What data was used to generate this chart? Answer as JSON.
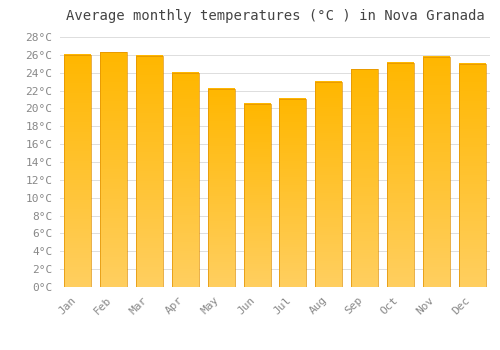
{
  "title": "Average monthly temperatures (°C ) in Nova Granada",
  "months": [
    "Jan",
    "Feb",
    "Mar",
    "Apr",
    "May",
    "Jun",
    "Jul",
    "Aug",
    "Sep",
    "Oct",
    "Nov",
    "Dec"
  ],
  "values": [
    26.0,
    26.3,
    25.9,
    24.0,
    22.2,
    20.5,
    21.1,
    23.0,
    24.4,
    25.1,
    25.8,
    25.0
  ],
  "bar_color_top": "#FFB700",
  "bar_color_bottom": "#FFCF60",
  "bar_edge_color": "#E09000",
  "background_color": "#FFFFFF",
  "grid_color": "#DDDDDD",
  "ylim": [
    0,
    29
  ],
  "title_fontsize": 10,
  "tick_fontsize": 8,
  "label_color": "#888888",
  "title_color": "#444444"
}
